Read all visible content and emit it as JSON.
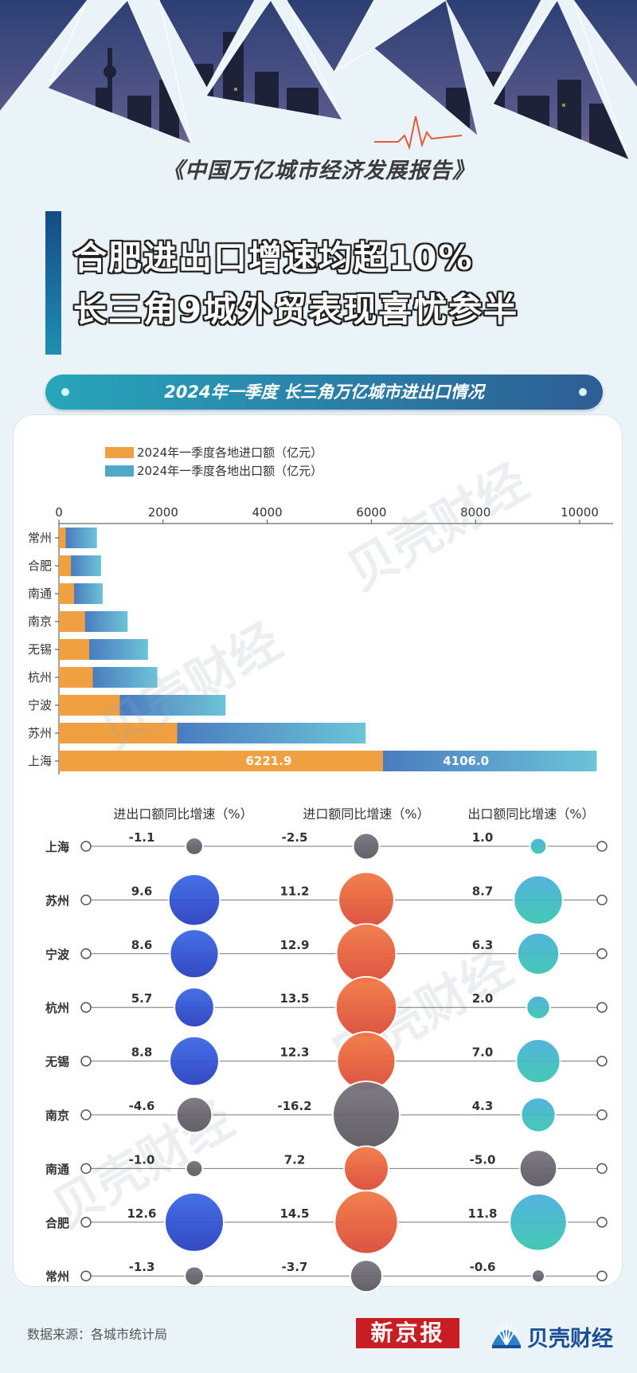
{
  "header": {
    "report_title": "《中国万亿城市经济发展报告》",
    "headline_line1": "合肥进出口增速均超10%",
    "headline_line2": "长三角9城外贸表现喜忧参半"
  },
  "banner": {
    "text": "2024年一季度 长三角万亿城市进出口情况"
  },
  "chart_data": [
    {
      "type": "bar",
      "stacked": true,
      "orientation": "horizontal",
      "categories": [
        "常州",
        "合肥",
        "南通",
        "南京",
        "无锡",
        "杭州",
        "宁波",
        "苏州",
        "上海"
      ],
      "series": [
        {
          "name": "2024年一季度各地进口额（亿元）",
          "color": "#f0a040",
          "values": [
            130,
            230,
            290,
            500,
            580,
            650,
            1170,
            2270,
            6221.9
          ]
        },
        {
          "name": "2024年一季度各地出口额（亿元）",
          "color": "#4fa8c8",
          "values": [
            600,
            580,
            550,
            820,
            1130,
            1240,
            2030,
            3620,
            4106.0
          ]
        }
      ],
      "data_labels": {
        "上海_import": "6221.9",
        "上海_export": "4106.0"
      },
      "xticks": [
        "0",
        "2000",
        "4000",
        "6000",
        "8000",
        "10000"
      ],
      "xlim": [
        0,
        10500
      ],
      "legend": "top-left",
      "grid": false
    },
    {
      "type": "scatter",
      "subtype": "bubble",
      "rows": [
        "上海",
        "苏州",
        "宁波",
        "杭州",
        "无锡",
        "南京",
        "南通",
        "合肥",
        "常州"
      ],
      "columns": [
        {
          "title": "进出口额同比增速（%）",
          "positive_color": "#2f55d4",
          "values": [
            -1.1,
            9.6,
            8.6,
            5.7,
            8.8,
            -4.6,
            -1.0,
            12.6,
            -1.3
          ],
          "labels": [
            "-1.1",
            "9.6",
            "8.6",
            "5.7",
            "8.8",
            "-4.6",
            "-1.0",
            "12.6",
            "-1.3"
          ]
        },
        {
          "title": "进口额同比增速（%）",
          "positive_color": "#e9663f",
          "values": [
            -2.5,
            11.2,
            12.9,
            13.5,
            12.3,
            -16.2,
            7.2,
            14.5,
            -3.7
          ],
          "labels": [
            "-2.5",
            "11.2",
            "12.9",
            "13.5",
            "12.3",
            "-16.2",
            "7.2",
            "14.5",
            "-3.7"
          ]
        },
        {
          "title": "出口额同比增速（%）",
          "positive_color": "#3bb3c3",
          "values": [
            1.0,
            8.7,
            6.3,
            2.0,
            7.0,
            4.3,
            -5.0,
            11.8,
            -0.6
          ],
          "labels": [
            "1.0",
            "8.7",
            "6.3",
            "2.0",
            "7.0",
            "4.3",
            "-5.0",
            "11.8",
            "-0.6"
          ]
        }
      ],
      "negative_color": "#6b6870"
    }
  ],
  "watermark": "贝壳财经",
  "footer": {
    "source": "数据来源：各城市统计局",
    "logo_xjb": "新京报",
    "logo_bk": "贝壳财经"
  }
}
